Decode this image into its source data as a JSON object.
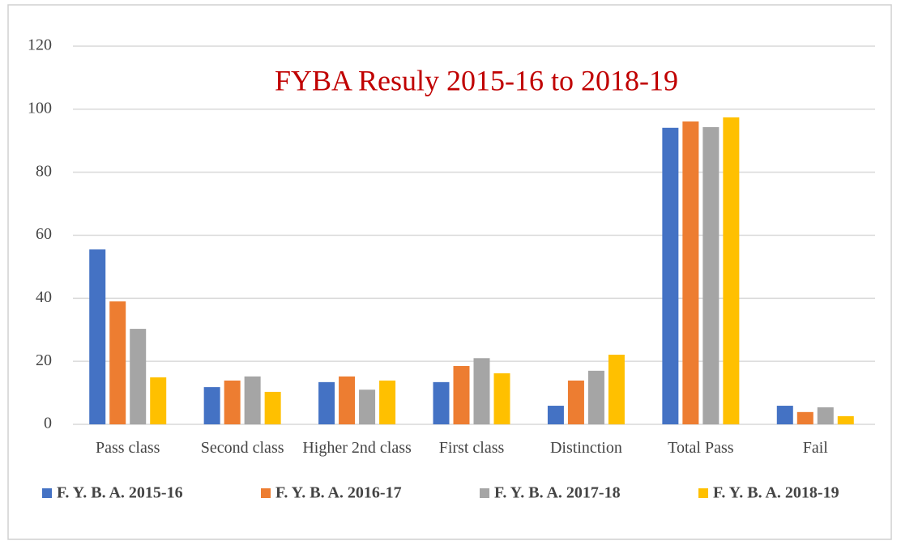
{
  "chart_data": {
    "type": "bar",
    "title": "FYBA Resuly 2015-16 to 2018-19",
    "categories": [
      "Pass class",
      "Second class",
      "Higher 2nd class",
      "First class",
      "Distinction",
      "Total Pass",
      "Fail"
    ],
    "series": [
      {
        "name": "F. Y. B. A. 2015-16",
        "color": "#4472c4",
        "values": [
          55.5,
          11.8,
          13.4,
          13.4,
          5.9,
          94.1,
          5.9
        ]
      },
      {
        "name": "F. Y. B. A. 2016-17",
        "color": "#ed7d31",
        "values": [
          39,
          13.9,
          15.2,
          18.5,
          13.9,
          96.1,
          3.9
        ]
      },
      {
        "name": "F. Y. B. A. 2017-18",
        "color": "#a5a5a5",
        "values": [
          30.3,
          15.2,
          11,
          21,
          17,
          94.3,
          5.4
        ]
      },
      {
        "name": "F. Y. B. A. 2018-19",
        "color": "#ffc000",
        "values": [
          14.9,
          10.3,
          13.9,
          16.2,
          22.1,
          97.4,
          2.6
        ]
      }
    ],
    "ylim": [
      0,
      120
    ],
    "yticks": [
      0,
      20,
      40,
      60,
      80,
      100,
      120
    ],
    "grid": true,
    "legend": "bottom"
  }
}
